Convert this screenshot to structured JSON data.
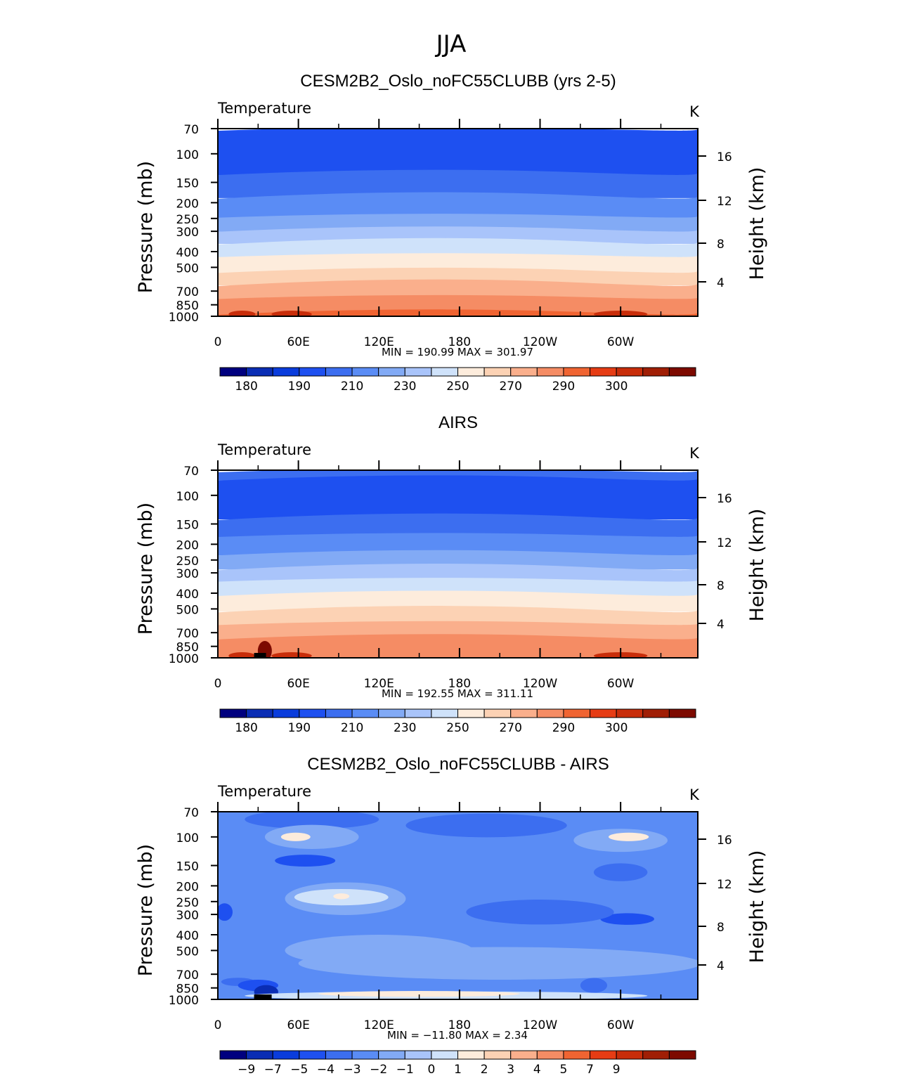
{
  "page_title": "JJA",
  "chart_data": [
    {
      "type": "heatmap",
      "title": "CESM2B2_Oslo_noFC55CLUBB (yrs 2-5)",
      "subtitle_left": "Temperature",
      "units": "K",
      "xlabel": "",
      "ylabel": "Pressure (mb)",
      "ylabel_right": "Height (km)",
      "x_ticks": [
        "0",
        "60E",
        "120E",
        "180",
        "120W",
        "60W"
      ],
      "x_tick_lon": [
        0,
        60,
        120,
        180,
        240,
        300
      ],
      "xlim": [
        0,
        357.5
      ],
      "y_ticks": [
        "70",
        "100",
        "150",
        "200",
        "250",
        "300",
        "400",
        "500",
        "700",
        "850",
        "1000"
      ],
      "y_tick_values": [
        70,
        100,
        150,
        200,
        250,
        300,
        400,
        500,
        700,
        850,
        1000
      ],
      "ylim": [
        1000,
        70
      ],
      "height_ticks": [
        "4",
        "8",
        "12",
        "16"
      ],
      "stats": "MIN = 190.99   MAX = 301.97",
      "min": 190.99,
      "max": 301.97,
      "bands": [
        {
          "top": 70,
          "bottom": 130,
          "value": 195
        },
        {
          "top": 130,
          "bottom": 180,
          "value": 205
        },
        {
          "top": 180,
          "bottom": 240,
          "value": 215
        },
        {
          "top": 240,
          "bottom": 290,
          "value": 225
        },
        {
          "top": 290,
          "bottom": 345,
          "value": 235
        },
        {
          "top": 345,
          "bottom": 420,
          "value": 245
        },
        {
          "top": 420,
          "bottom": 520,
          "value": 255
        },
        {
          "top": 520,
          "bottom": 620,
          "value": 265
        },
        {
          "top": 620,
          "bottom": 760,
          "value": 275
        },
        {
          "top": 760,
          "bottom": 940,
          "value": 285
        },
        {
          "top": 940,
          "bottom": 1000,
          "value": 295
        }
      ],
      "colorbar": {
        "colors": [
          "#00007f",
          "#0a2db4",
          "#0a3cdc",
          "#1e50f0",
          "#3c6ef0",
          "#5a8cf5",
          "#82aaf5",
          "#a9c4fa",
          "#cfe2fa",
          "#fdecdc",
          "#fcd2b4",
          "#faaf8c",
          "#f58c64",
          "#f06432",
          "#e63c14",
          "#c82d0a",
          "#a01e05",
          "#7d0a00"
        ],
        "labels": [
          "180",
          "190",
          "210",
          "230",
          "250",
          "270",
          "290",
          "300"
        ]
      }
    },
    {
      "type": "heatmap",
      "title": "AIRS",
      "subtitle_left": "Temperature",
      "units": "K",
      "xlabel": "",
      "ylabel": "Pressure (mb)",
      "ylabel_right": "Height (km)",
      "x_ticks": [
        "0",
        "60E",
        "120E",
        "180",
        "120W",
        "60W"
      ],
      "x_tick_lon": [
        0,
        60,
        120,
        180,
        240,
        300
      ],
      "xlim": [
        0,
        357.5
      ],
      "y_ticks": [
        "70",
        "100",
        "150",
        "200",
        "250",
        "300",
        "400",
        "500",
        "700",
        "850",
        "1000"
      ],
      "y_tick_values": [
        70,
        100,
        150,
        200,
        250,
        300,
        400,
        500,
        700,
        850,
        1000
      ],
      "ylim": [
        1000,
        70
      ],
      "height_ticks": [
        "4",
        "8",
        "12",
        "16"
      ],
      "stats": "MIN = 192.55   MAX = 311.11",
      "min": 192.55,
      "max": 311.11,
      "bands": [
        {
          "top": 70,
          "bottom": 78,
          "value": 205
        },
        {
          "top": 78,
          "bottom": 135,
          "value": 195
        },
        {
          "top": 135,
          "bottom": 175,
          "value": 205
        },
        {
          "top": 175,
          "bottom": 225,
          "value": 215
        },
        {
          "top": 225,
          "bottom": 275,
          "value": 225
        },
        {
          "top": 275,
          "bottom": 330,
          "value": 235
        },
        {
          "top": 330,
          "bottom": 400,
          "value": 245
        },
        {
          "top": 400,
          "bottom": 500,
          "value": 255
        },
        {
          "top": 500,
          "bottom": 610,
          "value": 265
        },
        {
          "top": 610,
          "bottom": 740,
          "value": 275
        },
        {
          "top": 740,
          "bottom": 1000,
          "value": 285
        }
      ],
      "colorbar": {
        "colors": [
          "#00007f",
          "#0a2db4",
          "#0a3cdc",
          "#1e50f0",
          "#3c6ef0",
          "#5a8cf5",
          "#82aaf5",
          "#a9c4fa",
          "#cfe2fa",
          "#fdecdc",
          "#fcd2b4",
          "#faaf8c",
          "#f58c64",
          "#f06432",
          "#e63c14",
          "#c82d0a",
          "#a01e05",
          "#7d0a00"
        ],
        "labels": [
          "180",
          "190",
          "210",
          "230",
          "250",
          "270",
          "290",
          "300"
        ]
      }
    },
    {
      "type": "heatmap",
      "title": "CESM2B2_Oslo_noFC55CLUBB - AIRS",
      "subtitle_left": "Temperature",
      "units": "K",
      "xlabel": "",
      "ylabel": "Pressure (mb)",
      "ylabel_right": "Height (km)",
      "x_ticks": [
        "0",
        "60E",
        "120E",
        "180",
        "120W",
        "60W"
      ],
      "x_tick_lon": [
        0,
        60,
        120,
        180,
        240,
        300
      ],
      "xlim": [
        0,
        357.5
      ],
      "y_ticks": [
        "70",
        "100",
        "150",
        "200",
        "250",
        "300",
        "400",
        "500",
        "700",
        "850",
        "1000"
      ],
      "y_tick_values": [
        70,
        100,
        150,
        200,
        250,
        300,
        400,
        500,
        700,
        850,
        1000
      ],
      "ylim": [
        1000,
        70
      ],
      "height_ticks": [
        "4",
        "8",
        "12",
        "16"
      ],
      "stats": "MIN = −11.80   MAX =    2.34",
      "min": -11.8,
      "max": 2.34,
      "background_value": -2.5,
      "patches": [
        {
          "lon": 70,
          "p": 78,
          "lon_width": 100,
          "dp": 20,
          "value": -3.5
        },
        {
          "lon": 200,
          "p": 85,
          "lon_width": 120,
          "dp": 25,
          "value": -3.5
        },
        {
          "lon": 70,
          "p": 100,
          "lon_width": 70,
          "dp": 30,
          "value": -1.5
        },
        {
          "lon": 300,
          "p": 105,
          "lon_width": 70,
          "dp": 30,
          "value": -1.5
        },
        {
          "lon": 58,
          "p": 100,
          "lon_width": 22,
          "dp": 8,
          "value": 0.5
        },
        {
          "lon": 306,
          "p": 100,
          "lon_width": 30,
          "dp": 8,
          "value": 0.5
        },
        {
          "lon": 65,
          "p": 140,
          "lon_width": 45,
          "dp": 18,
          "value": -4.5
        },
        {
          "lon": 300,
          "p": 165,
          "lon_width": 40,
          "dp": 35,
          "value": -3.5
        },
        {
          "lon": 305,
          "p": 320,
          "lon_width": 40,
          "dp": 40,
          "value": -4.5
        },
        {
          "lon": 240,
          "p": 290,
          "lon_width": 110,
          "dp": 90,
          "value": -3.5
        },
        {
          "lon": 5,
          "p": 290,
          "lon_width": 12,
          "dp": 60,
          "value": -4.5
        },
        {
          "lon": 95,
          "p": 240,
          "lon_width": 90,
          "dp": 100,
          "value": -1.5
        },
        {
          "lon": 92,
          "p": 235,
          "lon_width": 70,
          "dp": 45,
          "value": -0.5
        },
        {
          "lon": 92,
          "p": 232,
          "lon_width": 12,
          "dp": 10,
          "value": 0.5
        },
        {
          "lon": 210,
          "p": 600,
          "lon_width": 300,
          "dp": 250,
          "value": -1.5
        },
        {
          "lon": 120,
          "p": 500,
          "lon_width": 140,
          "dp": 200,
          "value": -1.5
        },
        {
          "lon": 15,
          "p": 780,
          "lon_width": 25,
          "dp": 60,
          "value": -3.5
        },
        {
          "lon": 30,
          "p": 820,
          "lon_width": 30,
          "dp": 100,
          "value": -4.5
        },
        {
          "lon": 36,
          "p": 900,
          "lon_width": 18,
          "dp": 140,
          "value": -9
        },
        {
          "lon": 280,
          "p": 820,
          "lon_width": 20,
          "dp": 140,
          "value": -3.5
        },
        {
          "lon": 170,
          "p": 950,
          "lon_width": 300,
          "dp": 80,
          "value": -0.5
        },
        {
          "lon": 150,
          "p": 925,
          "lon_width": 150,
          "dp": 40,
          "value": 0.5
        }
      ],
      "colorbar": {
        "colors": [
          "#00007f",
          "#0a2db4",
          "#0a3cdc",
          "#1e50f0",
          "#3c6ef0",
          "#5a8cf5",
          "#82aaf5",
          "#a9c4fa",
          "#cfe2fa",
          "#fdecdc",
          "#fcd2b4",
          "#faaf8c",
          "#f58c64",
          "#f06432",
          "#e63c14",
          "#c82d0a",
          "#a01e05",
          "#7d0a00"
        ],
        "labels": [
          "−9",
          "−7",
          "−5",
          "−4",
          "−3",
          "−2",
          "−1",
          "0",
          "1",
          "2",
          "3",
          "4",
          "5",
          "7",
          "9"
        ]
      }
    }
  ]
}
